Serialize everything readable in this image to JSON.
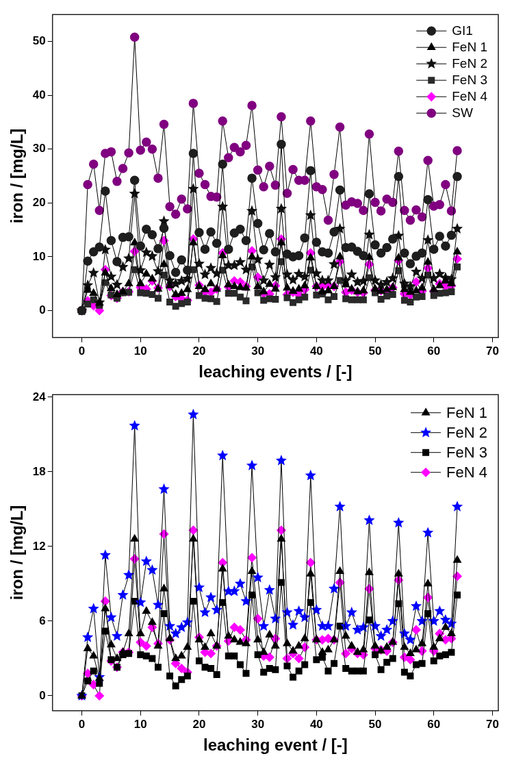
{
  "chart_data": [
    {
      "type": "line",
      "xlabel": "leaching events / [-]",
      "ylabel": "iron / [mg/L]",
      "x": [
        0,
        1,
        2,
        3,
        4,
        5,
        6,
        7,
        8,
        9,
        10,
        11,
        12,
        13,
        14,
        15,
        16,
        17,
        18,
        19,
        20,
        21,
        22,
        23,
        24,
        25,
        26,
        27,
        28,
        29,
        30,
        31,
        32,
        33,
        34,
        35,
        36,
        37,
        38,
        39,
        40,
        41,
        42,
        43,
        44,
        45,
        46,
        47,
        48,
        49,
        50,
        51,
        52,
        53,
        54,
        55,
        56,
        57,
        58,
        59,
        60,
        61,
        62,
        63,
        64
      ],
      "xlim": [
        -5,
        71
      ],
      "xticks": [
        0,
        10,
        20,
        30,
        40,
        50,
        60,
        70
      ],
      "ylim": [
        -5,
        55
      ],
      "yticks": [
        0,
        10,
        20,
        30,
        40,
        50
      ],
      "legend": "top right",
      "series": [
        {
          "name": "GI1",
          "color": "#1e1e1e",
          "marker": "circle",
          "values": [
            0,
            9.2,
            10.9,
            11.8,
            22.2,
            13.0,
            9.1,
            13.6,
            13.7,
            24.2,
            12.0,
            15.1,
            14.1,
            11.5,
            15.3,
            10.2,
            7.1,
            9.4,
            7.5,
            29.2,
            14.5,
            11.4,
            14.6,
            12.5,
            27.2,
            11.4,
            14.4,
            15.1,
            13.0,
            24.6,
            16.2,
            11.3,
            14.3,
            10.9,
            30.9,
            10.5,
            10.0,
            10.2,
            13.5,
            26.0,
            12.7,
            10.9,
            10.7,
            14.6,
            22.4,
            11.7,
            11.8,
            11.0,
            10.2,
            21.7,
            12.2,
            10.7,
            11.7,
            13.3,
            24.9,
            10.7,
            8.7,
            10.1,
            10.7,
            20.6,
            11.4,
            13.8,
            12.0,
            14.0,
            24.9
          ]
        },
        {
          "name": "FeN 1",
          "color": "#000000",
          "marker": "triangle",
          "values": [
            0,
            3.8,
            3.2,
            1.4,
            7.0,
            4.1,
            3.0,
            3.5,
            5.0,
            12.6,
            5.0,
            6.8,
            5.9,
            4.0,
            8.6,
            4.6,
            3.0,
            3.2,
            3.9,
            12.6,
            4.5,
            3.9,
            5.0,
            4.0,
            10.2,
            4.8,
            4.5,
            4.3,
            4.2,
            10.0,
            4.5,
            3.5,
            4.9,
            4.0,
            12.6,
            4.2,
            3.6,
            4.0,
            4.6,
            9.8,
            4.5,
            3.5,
            3.7,
            4.5,
            10.0,
            4.8,
            4.0,
            3.5,
            3.7,
            9.9,
            4.0,
            3.6,
            3.9,
            4.3,
            9.8,
            3.9,
            3.4,
            3.7,
            4.2,
            9.0,
            3.9,
            4.6,
            5.5,
            5.0,
            10.9
          ]
        },
        {
          "name": "FeN 2",
          "color": "#101010",
          "marker": "star",
          "values": [
            0,
            4.7,
            7.0,
            1.5,
            11.3,
            6.3,
            4.8,
            8.1,
            9.7,
            21.7,
            7.5,
            10.8,
            10.1,
            7.3,
            16.6,
            5.6,
            5.0,
            5.5,
            5.9,
            22.6,
            8.7,
            6.7,
            7.9,
            6.9,
            19.3,
            8.4,
            8.4,
            9.0,
            7.6,
            18.5,
            9.5,
            5.6,
            8.5,
            6.2,
            18.9,
            6.7,
            5.7,
            6.8,
            6.3,
            17.7,
            6.9,
            5.6,
            5.6,
            8.6,
            15.2,
            5.6,
            6.7,
            5.3,
            5.5,
            14.1,
            5.6,
            4.8,
            5.3,
            6.0,
            13.9,
            5.0,
            4.5,
            7.2,
            6.0,
            13.1,
            6.0,
            6.8,
            6.1,
            5.8,
            15.2
          ]
        },
        {
          "name": "FeN 3",
          "color": "#2a2a2a",
          "marker": "square",
          "values": [
            0,
            1.2,
            2.0,
            1.0,
            5.2,
            2.9,
            2.3,
            3.3,
            3.4,
            7.6,
            3.3,
            3.2,
            3.0,
            2.3,
            6.6,
            1.6,
            0.8,
            1.3,
            1.6,
            7.6,
            2.8,
            2.3,
            2.2,
            1.7,
            7.5,
            3.2,
            3.2,
            2.5,
            1.8,
            8.1,
            3.3,
            1.9,
            2.2,
            2.1,
            9.1,
            2.4,
            1.5,
            2.0,
            2.5,
            7.5,
            2.9,
            3.1,
            2.0,
            2.6,
            5.6,
            2.2,
            2.0,
            2.0,
            2.0,
            6.1,
            3.3,
            2.1,
            2.7,
            3.0,
            7.4,
            1.9,
            1.6,
            2.5,
            2.6,
            6.6,
            2.8,
            3.2,
            3.3,
            3.5,
            8.1
          ]
        },
        {
          "name": "FeN 4",
          "color": "#ff00ff",
          "marker": "diamond",
          "values": [
            0,
            1.8,
            0.9,
            0,
            7.6,
            2.8,
            2.3,
            3.5,
            3.5,
            11.0,
            4.3,
            4.0,
            5.5,
            4.2,
            13.0,
            4.5,
            2.6,
            2.2,
            1.9,
            13.3,
            4.7,
            3.5,
            3.4,
            4.0,
            10.7,
            4.4,
            5.5,
            5.3,
            4.5,
            11.1,
            6.2,
            3.2,
            3.1,
            4.6,
            13.3,
            3.0,
            3.4,
            3.0,
            3.9,
            10.7,
            4.5,
            4.5,
            4.6,
            4.5,
            9.1,
            3.4,
            3.8,
            3.4,
            3.3,
            8.6,
            3.8,
            3.7,
            3.6,
            4.3,
            9.3,
            3.1,
            2.9,
            5.3,
            3.6,
            7.9,
            3.6,
            5.0,
            4.5,
            4.6,
            9.6
          ]
        },
        {
          "name": "SW",
          "color": "#800080",
          "marker": "circle",
          "values": [
            0,
            23.4,
            27.2,
            18.6,
            29.2,
            29.5,
            24.0,
            26.4,
            29.3,
            50.8,
            29.8,
            31.3,
            30.0,
            24.6,
            34.6,
            19.3,
            17.9,
            20.7,
            18.9,
            38.5,
            25.5,
            23.4,
            21.2,
            21.1,
            35.2,
            28.4,
            30.3,
            29.5,
            30.7,
            38.1,
            26.1,
            23.0,
            26.8,
            23.3,
            36.0,
            21.8,
            26.2,
            24.2,
            24.2,
            35.2,
            23.0,
            22.5,
            16.8,
            25.3,
            34.1,
            19.6,
            20.2,
            19.9,
            18.6,
            32.8,
            20.1,
            18.5,
            20.7,
            20.1,
            29.6,
            18.6,
            16.8,
            18.7,
            17.4,
            27.9,
            19.4,
            19.7,
            23.4,
            18.5,
            29.7
          ]
        }
      ]
    },
    {
      "type": "line",
      "xlabel": "leaching event / [-]",
      "ylabel": "iron / [mg/L]",
      "x": [
        0,
        1,
        2,
        3,
        4,
        5,
        6,
        7,
        8,
        9,
        10,
        11,
        12,
        13,
        14,
        15,
        16,
        17,
        18,
        19,
        20,
        21,
        22,
        23,
        24,
        25,
        26,
        27,
        28,
        29,
        30,
        31,
        32,
        33,
        34,
        35,
        36,
        37,
        38,
        39,
        40,
        41,
        42,
        43,
        44,
        45,
        46,
        47,
        48,
        49,
        50,
        51,
        52,
        53,
        54,
        55,
        56,
        57,
        58,
        59,
        60,
        61,
        62,
        63,
        64
      ],
      "xlim": [
        -5,
        71
      ],
      "xticks": [
        0,
        10,
        20,
        30,
        40,
        50,
        60,
        70
      ],
      "ylim": [
        -1.2,
        24.2
      ],
      "yticks": [
        0,
        6,
        12,
        18,
        24
      ],
      "legend": "top right",
      "series": [
        {
          "name": "FeN 1",
          "color": "#000000",
          "marker": "triangle",
          "values": [
            0,
            3.8,
            3.2,
            1.4,
            7.0,
            4.1,
            3.0,
            3.5,
            5.0,
            12.6,
            5.0,
            6.8,
            5.9,
            4.0,
            8.6,
            4.6,
            3.0,
            3.2,
            3.9,
            12.6,
            4.5,
            3.9,
            5.0,
            4.0,
            10.2,
            4.8,
            4.5,
            4.3,
            4.2,
            10.0,
            4.5,
            3.5,
            4.9,
            4.0,
            12.6,
            4.2,
            3.6,
            4.0,
            4.6,
            9.8,
            4.5,
            3.5,
            3.7,
            4.5,
            10.0,
            4.8,
            4.0,
            3.5,
            3.7,
            9.9,
            4.0,
            3.6,
            3.9,
            4.3,
            9.8,
            3.9,
            3.4,
            3.7,
            4.2,
            9.0,
            3.9,
            4.6,
            5.5,
            5.0,
            10.9
          ]
        },
        {
          "name": "FeN 2",
          "color": "#0000ff",
          "marker": "star",
          "values": [
            0,
            4.7,
            7.0,
            1.5,
            11.3,
            6.3,
            4.8,
            8.1,
            9.7,
            21.7,
            7.5,
            10.8,
            10.1,
            7.3,
            16.6,
            5.6,
            5.0,
            5.5,
            5.9,
            22.6,
            8.7,
            6.7,
            7.9,
            6.9,
            19.3,
            8.4,
            8.4,
            9.0,
            7.6,
            18.5,
            9.5,
            5.6,
            8.5,
            6.2,
            18.9,
            6.7,
            5.7,
            6.8,
            6.3,
            17.7,
            6.9,
            5.6,
            5.6,
            8.6,
            15.2,
            5.6,
            6.7,
            5.3,
            5.5,
            14.1,
            5.6,
            4.8,
            5.3,
            6.0,
            13.9,
            5.0,
            4.5,
            7.2,
            6.0,
            13.1,
            6.0,
            6.8,
            6.1,
            5.8,
            15.2
          ]
        },
        {
          "name": "FeN 3",
          "color": "#000000",
          "marker": "square",
          "values": [
            0,
            1.2,
            2.0,
            1.0,
            5.2,
            2.9,
            2.3,
            3.3,
            3.4,
            7.6,
            3.3,
            3.2,
            3.0,
            2.3,
            6.6,
            1.6,
            0.8,
            1.3,
            1.6,
            7.6,
            2.8,
            2.3,
            2.2,
            1.7,
            7.5,
            3.2,
            3.2,
            2.5,
            1.8,
            8.1,
            3.3,
            1.9,
            2.2,
            2.1,
            9.1,
            2.4,
            1.5,
            2.0,
            2.5,
            7.5,
            2.9,
            3.1,
            2.0,
            2.6,
            5.6,
            2.2,
            2.0,
            2.0,
            2.0,
            6.1,
            3.3,
            2.1,
            2.7,
            3.0,
            7.4,
            1.9,
            1.6,
            2.5,
            2.6,
            6.6,
            2.8,
            3.2,
            3.3,
            3.5,
            8.1
          ]
        },
        {
          "name": "FeN 4",
          "color": "#ff00ff",
          "marker": "diamond",
          "values": [
            0,
            1.8,
            0.9,
            0,
            7.6,
            2.8,
            2.3,
            3.5,
            3.5,
            11.0,
            4.3,
            4.0,
            5.5,
            4.2,
            13.0,
            4.5,
            2.6,
            2.2,
            1.9,
            13.3,
            4.7,
            3.5,
            3.4,
            4.0,
            10.7,
            4.4,
            5.5,
            5.3,
            4.5,
            11.1,
            6.2,
            3.2,
            3.1,
            4.6,
            13.3,
            3.0,
            3.4,
            3.0,
            3.9,
            10.7,
            4.5,
            4.5,
            4.6,
            4.5,
            9.1,
            3.4,
            3.8,
            3.4,
            3.3,
            8.6,
            3.8,
            3.7,
            3.6,
            4.3,
            9.3,
            3.1,
            2.9,
            5.3,
            3.6,
            7.9,
            3.6,
            5.0,
            4.5,
            4.6,
            9.6
          ]
        }
      ]
    }
  ]
}
